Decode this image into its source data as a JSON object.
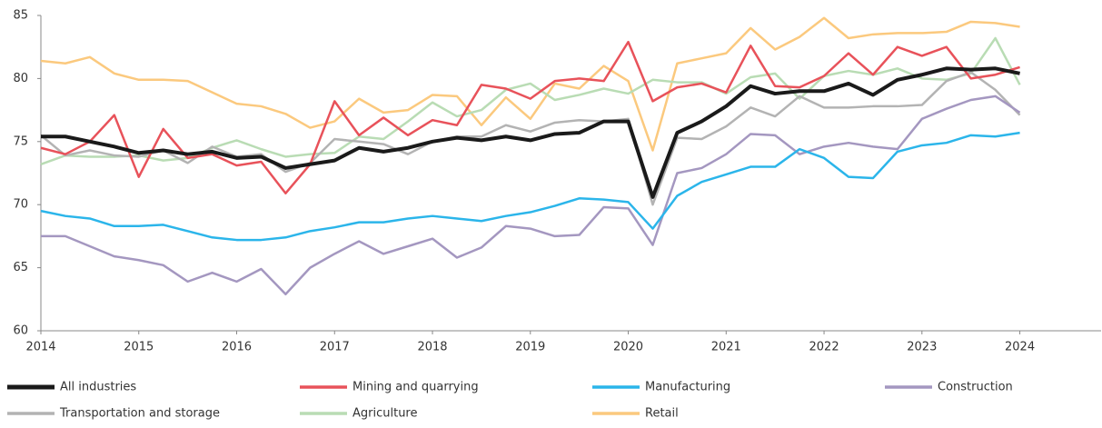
{
  "chart_data": {
    "type": "line",
    "x": [
      2014,
      2014.25,
      2014.5,
      2014.75,
      2015,
      2015.25,
      2015.5,
      2015.75,
      2016,
      2016.25,
      2016.5,
      2016.75,
      2017,
      2017.25,
      2017.5,
      2017.75,
      2018,
      2018.25,
      2018.5,
      2018.75,
      2019,
      2019.25,
      2019.5,
      2019.75,
      2020,
      2020.25,
      2020.5,
      2020.75,
      2021,
      2021.25,
      2021.5,
      2021.75,
      2022,
      2022.25,
      2022.5,
      2022.75,
      2023,
      2023.25,
      2023.5,
      2023.75,
      2024
    ],
    "xlim": [
      2014,
      2024.83
    ],
    "xticks": [
      2014,
      2015,
      2016,
      2017,
      2018,
      2019,
      2020,
      2021,
      2022,
      2023,
      2024
    ],
    "ylim": [
      60,
      85
    ],
    "yticks": [
      60,
      65,
      70,
      75,
      80,
      85
    ],
    "grid": false,
    "legend": "bottom",
    "series": [
      {
        "name": "All industries",
        "color": "#1a1a1a",
        "values": [
          75.4,
          75.4,
          75.0,
          74.6,
          74.1,
          74.3,
          74.0,
          74.2,
          73.7,
          73.8,
          72.9,
          73.2,
          73.5,
          74.5,
          74.2,
          74.5,
          75.0,
          75.3,
          75.1,
          75.4,
          75.1,
          75.6,
          75.7,
          76.6,
          76.6,
          70.6,
          75.7,
          76.6,
          77.8,
          79.4,
          78.8,
          79.0,
          79.0,
          79.6,
          78.7,
          79.9,
          80.3,
          80.8,
          80.7,
          80.8,
          80.4
        ]
      },
      {
        "name": "Mining and quarrying",
        "color": "#e8525a",
        "values": [
          74.5,
          74.0,
          75.0,
          77.1,
          72.2,
          76.0,
          73.7,
          74.0,
          73.1,
          73.4,
          70.9,
          73.2,
          78.2,
          75.5,
          76.9,
          75.5,
          76.7,
          76.3,
          79.5,
          79.2,
          78.4,
          79.8,
          80.0,
          79.8,
          82.9,
          78.2,
          79.3,
          79.6,
          78.9,
          82.6,
          79.4,
          79.3,
          80.2,
          82.0,
          80.3,
          82.5,
          81.8,
          82.5,
          80.0,
          80.3,
          80.9
        ]
      },
      {
        "name": "Manufacturing",
        "color": "#2bb5ea",
        "values": [
          69.5,
          69.1,
          68.9,
          68.3,
          68.3,
          68.4,
          67.9,
          67.4,
          67.2,
          67.2,
          67.4,
          67.9,
          68.2,
          68.6,
          68.6,
          68.9,
          69.1,
          68.9,
          68.7,
          69.1,
          69.4,
          69.9,
          70.5,
          70.4,
          70.2,
          68.1,
          70.7,
          71.8,
          72.4,
          73.0,
          73.0,
          74.4,
          73.7,
          72.2,
          72.1,
          74.2,
          74.7,
          74.9,
          75.5,
          75.4,
          75.7
        ]
      },
      {
        "name": "Construction",
        "color": "#a497c0",
        "values": [
          67.5,
          67.5,
          66.7,
          65.9,
          65.6,
          65.2,
          63.9,
          64.6,
          63.9,
          64.9,
          62.9,
          65.0,
          66.1,
          67.1,
          66.1,
          66.7,
          67.3,
          65.8,
          66.6,
          68.3,
          68.1,
          67.5,
          67.6,
          69.8,
          69.7,
          66.8,
          72.5,
          72.9,
          74.0,
          75.6,
          75.5,
          74.0,
          74.6,
          74.9,
          74.6,
          74.4,
          76.8,
          77.6,
          78.3,
          78.6,
          77.3
        ]
      },
      {
        "name": "Transportation and storage",
        "color": "#b3b3b3",
        "values": [
          75.5,
          73.9,
          74.3,
          73.9,
          73.8,
          74.3,
          73.3,
          74.6,
          73.8,
          74.0,
          72.6,
          73.3,
          75.2,
          75.0,
          74.8,
          74.0,
          75.0,
          75.4,
          75.4,
          76.3,
          75.8,
          76.5,
          76.7,
          76.6,
          76.8,
          70.0,
          75.3,
          75.2,
          76.2,
          77.7,
          77.0,
          78.6,
          77.7,
          77.7,
          77.8,
          77.8,
          77.9,
          79.8,
          80.5,
          79.1,
          77.1
        ]
      },
      {
        "name": "Agriculture",
        "color": "#b9dcb4",
        "values": [
          73.2,
          73.9,
          73.8,
          73.8,
          73.9,
          73.5,
          73.7,
          74.5,
          75.1,
          74.4,
          73.8,
          74.0,
          74.1,
          75.4,
          75.2,
          76.6,
          78.1,
          77.0,
          77.5,
          79.1,
          79.6,
          78.3,
          78.7,
          79.2,
          78.8,
          79.9,
          79.7,
          79.7,
          78.8,
          80.1,
          80.4,
          78.4,
          80.2,
          80.6,
          80.3,
          80.8,
          80.0,
          79.9,
          80.4,
          83.2,
          79.5
        ]
      },
      {
        "name": "Retail",
        "color": "#fbc97e",
        "values": [
          81.4,
          81.2,
          81.7,
          80.4,
          79.9,
          79.9,
          79.8,
          78.9,
          78.0,
          77.8,
          77.2,
          76.1,
          76.6,
          78.4,
          77.3,
          77.5,
          78.7,
          78.6,
          76.3,
          78.5,
          76.8,
          79.6,
          79.2,
          81.0,
          79.8,
          74.3,
          81.2,
          81.6,
          82.0,
          84.0,
          82.3,
          83.3,
          84.8,
          83.2,
          83.5,
          83.6,
          83.6,
          83.7,
          84.5,
          84.4,
          84.1
        ]
      }
    ]
  }
}
